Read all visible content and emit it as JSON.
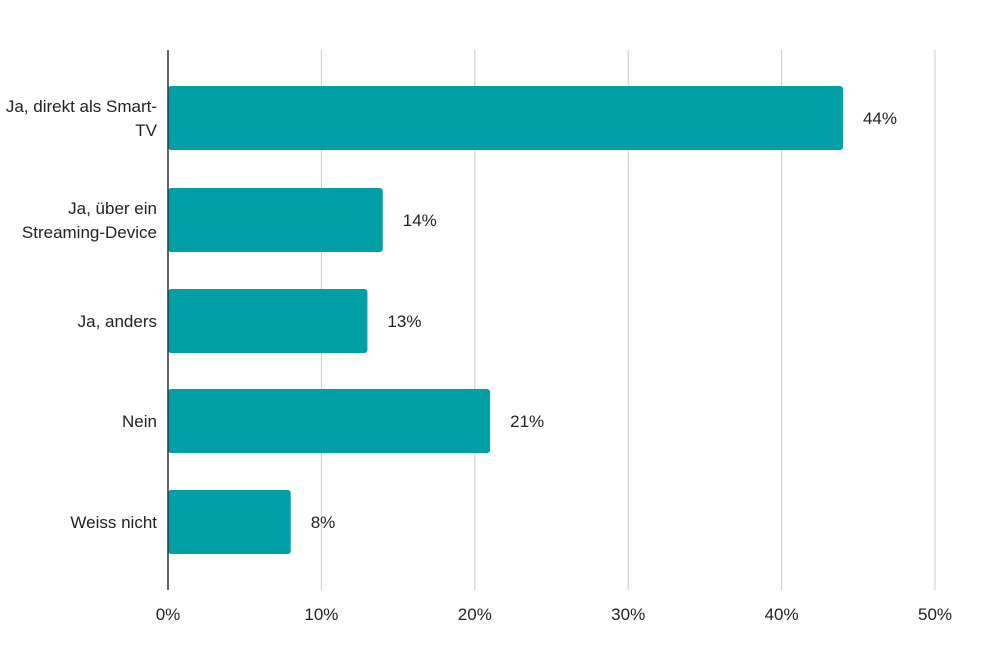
{
  "chart_data": {
    "type": "bar",
    "orientation": "horizontal",
    "categories": [
      [
        "Ja, direkt als Smart-",
        "TV"
      ],
      [
        "Ja, über ein",
        "Streaming-Device"
      ],
      [
        "Ja, anders"
      ],
      [
        "Nein"
      ],
      [
        "Weiss nicht"
      ]
    ],
    "values": [
      44,
      14,
      13,
      21,
      8
    ],
    "value_labels": [
      "44%",
      "14%",
      "13%",
      "21%",
      "8%"
    ],
    "xlim": [
      0,
      50
    ],
    "x_ticks": [
      0,
      10,
      20,
      30,
      40,
      50
    ],
    "x_tick_labels": [
      "0%",
      "10%",
      "20%",
      "30%",
      "40%",
      "50%"
    ],
    "grid": true,
    "bar_color": "#00A0A6",
    "grid_color": "#CCCCCC",
    "axis_color": "#333333",
    "text_color": "#222222"
  }
}
